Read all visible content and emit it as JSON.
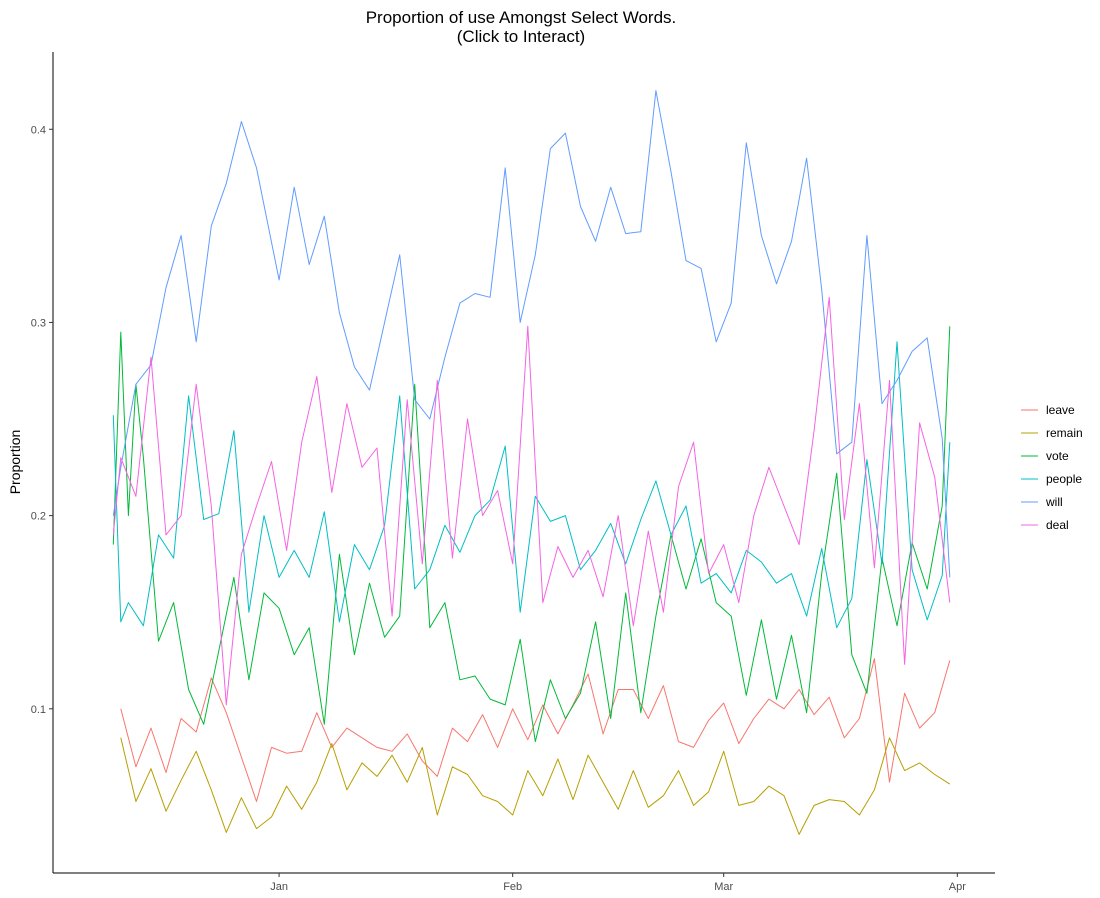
{
  "chart_data": {
    "type": "line",
    "title_lines": [
      "Proportion of use Amongst Select Words.",
      "(Click to Interact)"
    ],
    "xlabel": "",
    "ylabel": "Proportion",
    "x_ticks": [
      {
        "label": "Jan",
        "x": "2019-01-01"
      },
      {
        "label": "Feb",
        "x": "2019-02-01"
      },
      {
        "label": "Mar",
        "x": "2019-03-01"
      },
      {
        "label": "Apr",
        "x": "2019-04-01"
      }
    ],
    "y_ticks": [
      0.1,
      0.2,
      0.3,
      0.4
    ],
    "xlim": [
      "2018-12-02",
      "2019-04-06"
    ],
    "ylim": [
      0.015,
      0.44
    ],
    "grid": false,
    "legend_position": "right",
    "series": [
      {
        "name": "leave",
        "color": "#F8766D",
        "x_dates": [
          "2018-12-11",
          "2018-12-13",
          "2018-12-15",
          "2018-12-17",
          "2018-12-19",
          "2018-12-21",
          "2018-12-23",
          "2018-12-25",
          "2018-12-27",
          "2018-12-29",
          "2018-12-31",
          "2019-01-02",
          "2019-01-04",
          "2019-01-06",
          "2019-01-08",
          "2019-01-10",
          "2019-01-12",
          "2019-01-14",
          "2019-01-16",
          "2019-01-18",
          "2019-01-20",
          "2019-01-22",
          "2019-01-24",
          "2019-01-26",
          "2019-01-28",
          "2019-01-30",
          "2019-02-01",
          "2019-02-03",
          "2019-02-05",
          "2019-02-07",
          "2019-02-09",
          "2019-02-11",
          "2019-02-13",
          "2019-02-15",
          "2019-02-17",
          "2019-02-19",
          "2019-02-21",
          "2019-02-23",
          "2019-02-25",
          "2019-02-27",
          "2019-03-01",
          "2019-03-03",
          "2019-03-05",
          "2019-03-07",
          "2019-03-09",
          "2019-03-11",
          "2019-03-13",
          "2019-03-15",
          "2019-03-17",
          "2019-03-19",
          "2019-03-21",
          "2019-03-23",
          "2019-03-25",
          "2019-03-27",
          "2019-03-29",
          "2019-03-31"
        ],
        "values": [
          0.1,
          0.07,
          0.09,
          0.067,
          0.095,
          0.088,
          0.116,
          0.098,
          0.075,
          0.052,
          0.08,
          0.077,
          0.078,
          0.098,
          0.08,
          0.09,
          0.085,
          0.08,
          0.078,
          0.087,
          0.073,
          0.065,
          0.09,
          0.083,
          0.097,
          0.08,
          0.1,
          0.084,
          0.102,
          0.087,
          0.102,
          0.118,
          0.087,
          0.11,
          0.11,
          0.095,
          0.112,
          0.083,
          0.08,
          0.094,
          0.103,
          0.082,
          0.095,
          0.105,
          0.1,
          0.11,
          0.097,
          0.106,
          0.085,
          0.095,
          0.126,
          0.062,
          0.108,
          0.09,
          0.098,
          0.125
        ]
      },
      {
        "name": "remain",
        "color": "#B79F00",
        "x_dates": [
          "2018-12-11",
          "2018-12-13",
          "2018-12-15",
          "2018-12-17",
          "2018-12-19",
          "2018-12-21",
          "2018-12-23",
          "2018-12-25",
          "2018-12-27",
          "2018-12-29",
          "2018-12-31",
          "2019-01-02",
          "2019-01-04",
          "2019-01-06",
          "2019-01-08",
          "2019-01-10",
          "2019-01-12",
          "2019-01-14",
          "2019-01-16",
          "2019-01-18",
          "2019-01-20",
          "2019-01-22",
          "2019-01-24",
          "2019-01-26",
          "2019-01-28",
          "2019-01-30",
          "2019-02-01",
          "2019-02-03",
          "2019-02-05",
          "2019-02-07",
          "2019-02-09",
          "2019-02-11",
          "2019-02-13",
          "2019-02-15",
          "2019-02-17",
          "2019-02-19",
          "2019-02-21",
          "2019-02-23",
          "2019-02-25",
          "2019-02-27",
          "2019-03-01",
          "2019-03-03",
          "2019-03-05",
          "2019-03-07",
          "2019-03-09",
          "2019-03-11",
          "2019-03-13",
          "2019-03-15",
          "2019-03-17",
          "2019-03-19",
          "2019-03-21",
          "2019-03-23",
          "2019-03-25",
          "2019-03-27",
          "2019-03-29",
          "2019-03-31"
        ],
        "values": [
          0.085,
          0.052,
          0.069,
          0.047,
          0.063,
          0.078,
          0.058,
          0.036,
          0.054,
          0.038,
          0.044,
          0.06,
          0.048,
          0.062,
          0.082,
          0.058,
          0.072,
          0.065,
          0.076,
          0.062,
          0.08,
          0.045,
          0.07,
          0.066,
          0.055,
          0.052,
          0.045,
          0.068,
          0.055,
          0.074,
          0.053,
          0.076,
          0.062,
          0.048,
          0.068,
          0.049,
          0.055,
          0.068,
          0.05,
          0.057,
          0.078,
          0.05,
          0.052,
          0.06,
          0.055,
          0.035,
          0.05,
          0.053,
          0.052,
          0.045,
          0.058,
          0.085,
          0.068,
          0.072,
          0.066,
          0.061
        ]
      },
      {
        "name": "vote",
        "color": "#00BA38",
        "x_dates": [
          "2018-12-10",
          "2018-12-11",
          "2018-12-12",
          "2018-12-13",
          "2018-12-14",
          "2018-12-16",
          "2018-12-18",
          "2018-12-20",
          "2018-12-22",
          "2018-12-24",
          "2018-12-26",
          "2018-12-28",
          "2018-12-30",
          "2019-01-01",
          "2019-01-03",
          "2019-01-05",
          "2019-01-07",
          "2019-01-09",
          "2019-01-11",
          "2019-01-13",
          "2019-01-15",
          "2019-01-17",
          "2019-01-19",
          "2019-01-21",
          "2019-01-23",
          "2019-01-25",
          "2019-01-27",
          "2019-01-29",
          "2019-01-31",
          "2019-02-02",
          "2019-02-04",
          "2019-02-06",
          "2019-02-08",
          "2019-02-10",
          "2019-02-12",
          "2019-02-14",
          "2019-02-16",
          "2019-02-18",
          "2019-02-20",
          "2019-02-22",
          "2019-02-24",
          "2019-02-26",
          "2019-02-28",
          "2019-03-02",
          "2019-03-04",
          "2019-03-06",
          "2019-03-08",
          "2019-03-10",
          "2019-03-12",
          "2019-03-14",
          "2019-03-16",
          "2019-03-18",
          "2019-03-20",
          "2019-03-22",
          "2019-03-24",
          "2019-03-26",
          "2019-03-28",
          "2019-03-30",
          "2019-03-31"
        ],
        "values": [
          0.185,
          0.295,
          0.2,
          0.268,
          0.23,
          0.135,
          0.155,
          0.11,
          0.092,
          0.13,
          0.168,
          0.115,
          0.16,
          0.152,
          0.128,
          0.142,
          0.092,
          0.18,
          0.128,
          0.165,
          0.137,
          0.148,
          0.268,
          0.142,
          0.155,
          0.115,
          0.117,
          0.105,
          0.102,
          0.136,
          0.083,
          0.115,
          0.095,
          0.108,
          0.145,
          0.095,
          0.16,
          0.098,
          0.148,
          0.19,
          0.162,
          0.188,
          0.155,
          0.148,
          0.107,
          0.146,
          0.105,
          0.138,
          0.098,
          0.17,
          0.222,
          0.128,
          0.108,
          0.178,
          0.143,
          0.186,
          0.162,
          0.205,
          0.298
        ]
      },
      {
        "name": "people",
        "color": "#00BFC4",
        "x_dates": [
          "2018-12-10",
          "2018-12-11",
          "2018-12-12",
          "2018-12-14",
          "2018-12-16",
          "2018-12-18",
          "2018-12-20",
          "2018-12-22",
          "2018-12-24",
          "2018-12-26",
          "2018-12-28",
          "2018-12-30",
          "2019-01-01",
          "2019-01-03",
          "2019-01-05",
          "2019-01-07",
          "2019-01-09",
          "2019-01-11",
          "2019-01-13",
          "2019-01-15",
          "2019-01-17",
          "2019-01-19",
          "2019-01-21",
          "2019-01-23",
          "2019-01-25",
          "2019-01-27",
          "2019-01-29",
          "2019-01-31",
          "2019-02-02",
          "2019-02-04",
          "2019-02-06",
          "2019-02-08",
          "2019-02-10",
          "2019-02-12",
          "2019-02-14",
          "2019-02-16",
          "2019-02-18",
          "2019-02-20",
          "2019-02-22",
          "2019-02-24",
          "2019-02-26",
          "2019-02-28",
          "2019-03-02",
          "2019-03-04",
          "2019-03-06",
          "2019-03-08",
          "2019-03-10",
          "2019-03-12",
          "2019-03-14",
          "2019-03-16",
          "2019-03-18",
          "2019-03-20",
          "2019-03-22",
          "2019-03-24",
          "2019-03-26",
          "2019-03-28",
          "2019-03-30",
          "2019-03-31"
        ],
        "values": [
          0.252,
          0.145,
          0.155,
          0.143,
          0.19,
          0.178,
          0.262,
          0.198,
          0.201,
          0.244,
          0.15,
          0.2,
          0.168,
          0.182,
          0.168,
          0.202,
          0.145,
          0.185,
          0.172,
          0.195,
          0.262,
          0.162,
          0.172,
          0.195,
          0.181,
          0.2,
          0.208,
          0.236,
          0.15,
          0.21,
          0.197,
          0.2,
          0.172,
          0.182,
          0.196,
          0.175,
          0.198,
          0.218,
          0.19,
          0.205,
          0.165,
          0.17,
          0.16,
          0.182,
          0.176,
          0.165,
          0.17,
          0.148,
          0.183,
          0.142,
          0.157,
          0.229,
          0.175,
          0.29,
          0.172,
          0.146,
          0.169,
          0.238
        ]
      },
      {
        "name": "will",
        "color": "#619CFF",
        "x_dates": [
          "2018-12-10",
          "2018-12-11",
          "2018-12-13",
          "2018-12-15",
          "2018-12-17",
          "2018-12-19",
          "2018-12-21",
          "2018-12-23",
          "2018-12-25",
          "2018-12-27",
          "2018-12-29",
          "2019-01-01",
          "2019-01-03",
          "2019-01-05",
          "2019-01-07",
          "2019-01-09",
          "2019-01-11",
          "2019-01-13",
          "2019-01-15",
          "2019-01-17",
          "2019-01-19",
          "2019-01-21",
          "2019-01-23",
          "2019-01-25",
          "2019-01-27",
          "2019-01-29",
          "2019-01-31",
          "2019-02-02",
          "2019-02-04",
          "2019-02-06",
          "2019-02-08",
          "2019-02-10",
          "2019-02-12",
          "2019-02-14",
          "2019-02-16",
          "2019-02-18",
          "2019-02-20",
          "2019-02-22",
          "2019-02-24",
          "2019-02-26",
          "2019-02-28",
          "2019-03-02",
          "2019-03-04",
          "2019-03-06",
          "2019-03-08",
          "2019-03-10",
          "2019-03-12",
          "2019-03-14",
          "2019-03-16",
          "2019-03-18",
          "2019-03-20",
          "2019-03-22",
          "2019-03-24",
          "2019-03-26",
          "2019-03-28",
          "2019-03-30",
          "2019-03-31"
        ],
        "values": [
          0.2,
          0.225,
          0.268,
          0.278,
          0.318,
          0.345,
          0.29,
          0.35,
          0.372,
          0.404,
          0.38,
          0.322,
          0.37,
          0.33,
          0.355,
          0.305,
          0.277,
          0.265,
          0.3,
          0.335,
          0.26,
          0.25,
          0.282,
          0.31,
          0.315,
          0.313,
          0.38,
          0.3,
          0.335,
          0.39,
          0.398,
          0.36,
          0.342,
          0.37,
          0.346,
          0.347,
          0.42,
          0.378,
          0.332,
          0.328,
          0.29,
          0.31,
          0.393,
          0.345,
          0.32,
          0.342,
          0.385,
          0.317,
          0.232,
          0.238,
          0.345,
          0.258,
          0.27,
          0.285,
          0.292,
          0.24,
          0.168
        ]
      },
      {
        "name": "deal",
        "color": "#F564E3",
        "x_dates": [
          "2018-12-10",
          "2018-12-11",
          "2018-12-13",
          "2018-12-15",
          "2018-12-17",
          "2018-12-19",
          "2018-12-21",
          "2018-12-23",
          "2018-12-25",
          "2018-12-27",
          "2018-12-29",
          "2018-12-31",
          "2019-01-02",
          "2019-01-04",
          "2019-01-06",
          "2019-01-08",
          "2019-01-10",
          "2019-01-12",
          "2019-01-14",
          "2019-01-16",
          "2019-01-18",
          "2019-01-20",
          "2019-01-22",
          "2019-01-24",
          "2019-01-26",
          "2019-01-28",
          "2019-01-30",
          "2019-02-01",
          "2019-02-03",
          "2019-02-05",
          "2019-02-07",
          "2019-02-09",
          "2019-02-11",
          "2019-02-13",
          "2019-02-15",
          "2019-02-17",
          "2019-02-19",
          "2019-02-21",
          "2019-02-23",
          "2019-02-25",
          "2019-02-27",
          "2019-03-01",
          "2019-03-03",
          "2019-03-05",
          "2019-03-07",
          "2019-03-09",
          "2019-03-11",
          "2019-03-13",
          "2019-03-15",
          "2019-03-17",
          "2019-03-19",
          "2019-03-21",
          "2019-03-23",
          "2019-03-25",
          "2019-03-27",
          "2019-03-29",
          "2019-03-31"
        ],
        "values": [
          0.19,
          0.23,
          0.21,
          0.282,
          0.19,
          0.2,
          0.268,
          0.205,
          0.102,
          0.18,
          0.205,
          0.228,
          0.182,
          0.238,
          0.272,
          0.212,
          0.258,
          0.225,
          0.235,
          0.148,
          0.26,
          0.175,
          0.27,
          0.178,
          0.25,
          0.2,
          0.213,
          0.175,
          0.298,
          0.155,
          0.184,
          0.168,
          0.182,
          0.158,
          0.2,
          0.143,
          0.192,
          0.15,
          0.215,
          0.238,
          0.17,
          0.185,
          0.155,
          0.2,
          0.225,
          0.205,
          0.185,
          0.244,
          0.313,
          0.198,
          0.258,
          0.173,
          0.27,
          0.123,
          0.248,
          0.22,
          0.155
        ]
      }
    ]
  }
}
